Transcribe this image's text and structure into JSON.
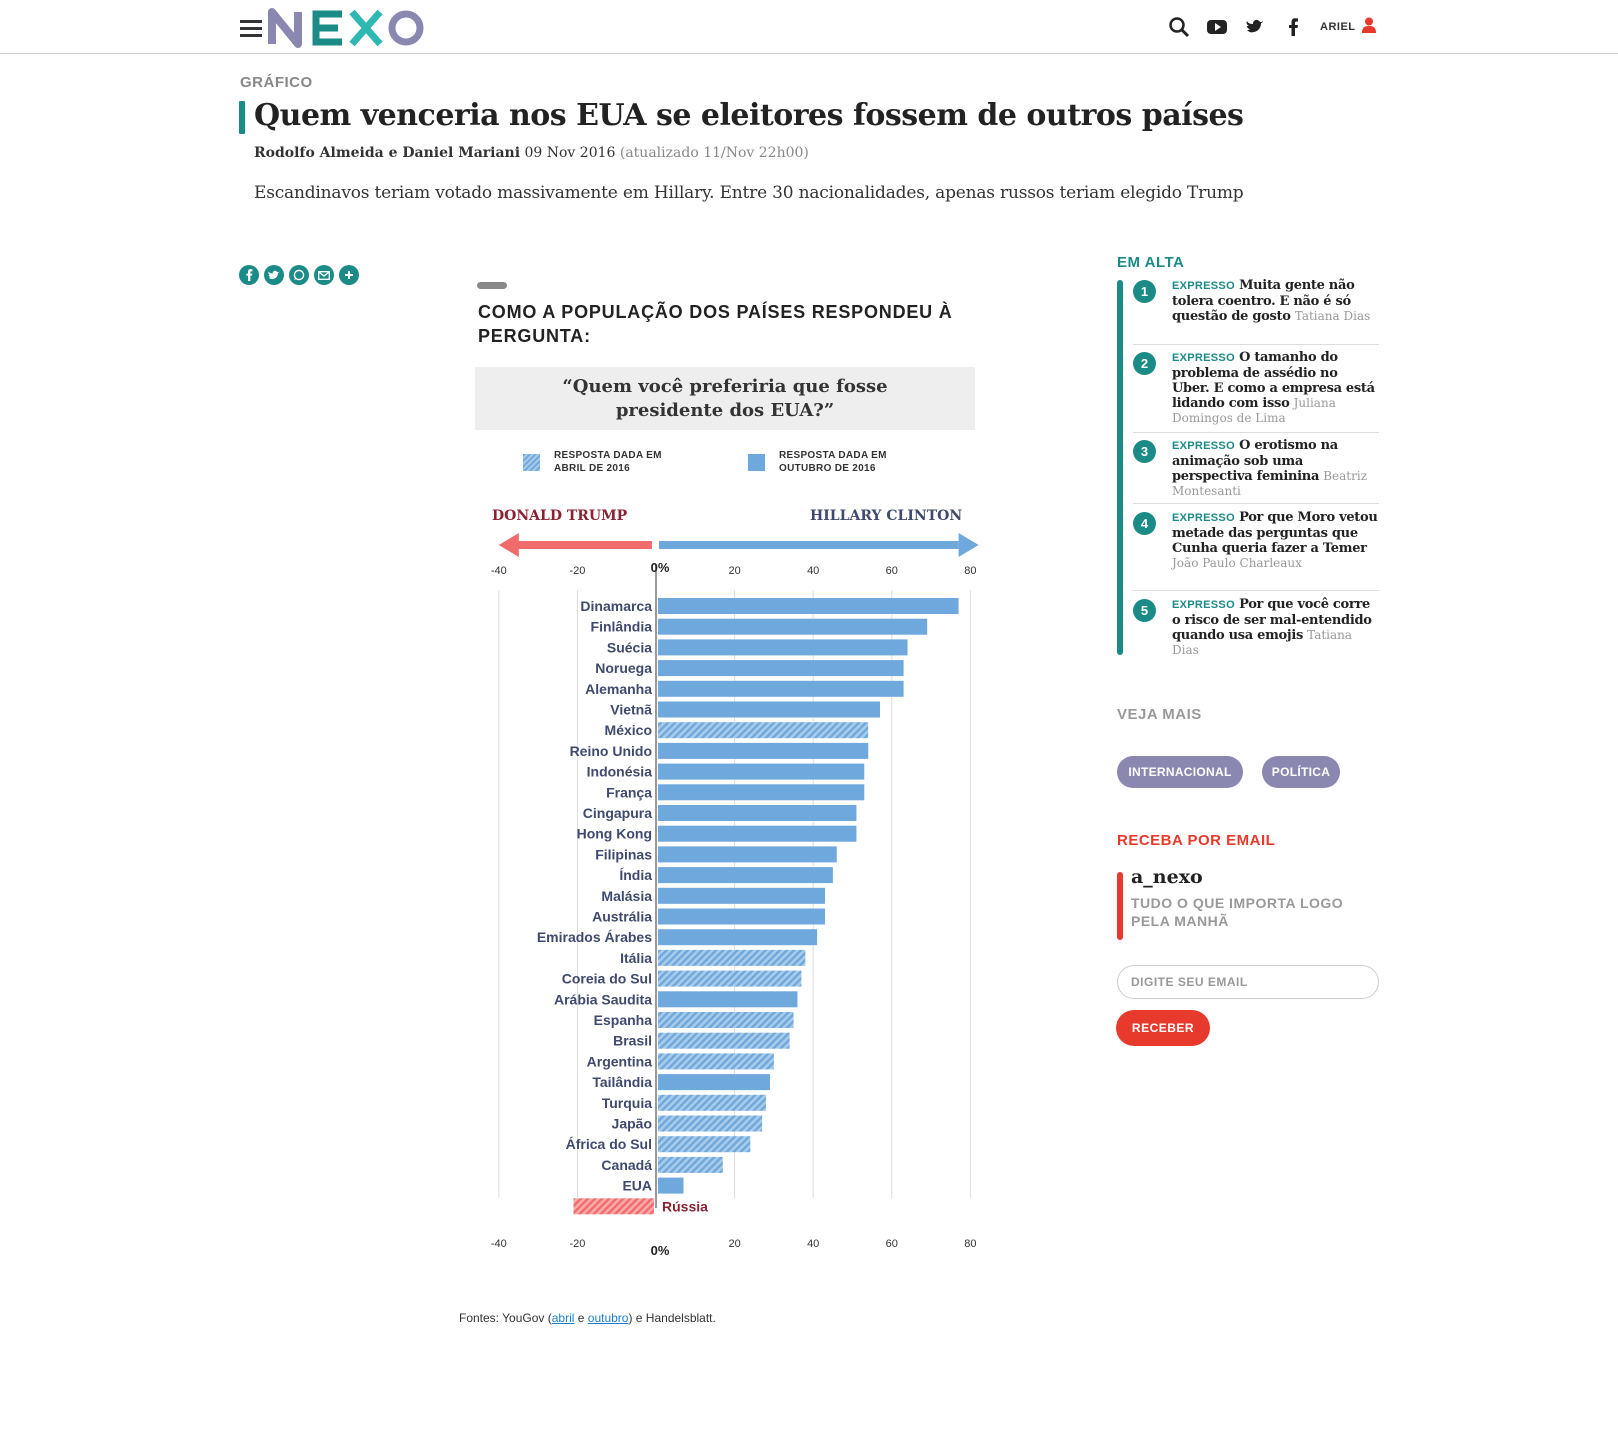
{
  "header": {
    "logo": "NEXO",
    "user": "ARIEL",
    "icons": [
      "menu-icon",
      "search-icon",
      "youtube-icon",
      "twitter-icon",
      "facebook-icon",
      "user-icon"
    ],
    "brand_colors": {
      "teal": "#1b8b88",
      "purple": "#8a88b0",
      "red": "#e83a2c"
    }
  },
  "article": {
    "section": "GRÁFICO",
    "title": "Quem venceria nos EUA se eleitores fossem de outros países",
    "authors": "Rodolfo Almeida e Daniel Mariani",
    "date": "09 Nov 2016",
    "updated": "(atualizado 11/Nov 22h00)",
    "subtitle": "Escandinavos teriam votado massivamente em Hillary. Entre 30 nacionalidades, apenas russos teriam elegido Trump",
    "share_icons": [
      "facebook-icon",
      "twitter-icon",
      "whatsapp-icon",
      "email-icon",
      "plus-icon"
    ]
  },
  "graphic": {
    "heading": "COMO A POPULAÇÃO DOS PAÍSES RESPONDEU À PERGUNTA:",
    "question": "“Quem você preferiria que fosse presidente dos EUA?”",
    "legend_april": "RESPOSTA DADA EM ABRIL DE 2016",
    "legend_october": "RESPOSTA DADA EM OUTUBRO DE 2016",
    "left_candidate": "DONALD TRUMP",
    "right_candidate": "HILLARY CLINTON",
    "sources_prefix": "Fontes: YouGov (",
    "sources_link1": "abril",
    "sources_mid": " e ",
    "sources_link2": "outubro",
    "sources_suffix": ") e Handelsblatt."
  },
  "chart_data": {
    "type": "bar",
    "orientation": "horizontal",
    "zero_label": "0%",
    "xlim": [
      -40,
      80
    ],
    "ticks": [
      "-40",
      "-20",
      "20",
      "40",
      "60",
      "80"
    ],
    "tick_values": [
      -40,
      -20,
      20,
      40,
      60,
      80
    ],
    "colors": {
      "clinton": "#6fa8dc",
      "trump": "#f06b6b",
      "label": "#3f4a6e",
      "russia_label": "#8b2232"
    },
    "categories": [
      "Dinamarca",
      "Finlândia",
      "Suécia",
      "Noruega",
      "Alemanha",
      "Vietnã",
      "México",
      "Reino Unido",
      "Indonésia",
      "França",
      "Cingapura",
      "Hong Kong",
      "Filipinas",
      "Índia",
      "Malásia",
      "Austrália",
      "Emirados Árabes",
      "Itália",
      "Coreia do Sul",
      "Arábia Saudita",
      "Espanha",
      "Brasil",
      "Argentina",
      "Tailândia",
      "Turquia",
      "Japão",
      "África do Sul",
      "Canadá",
      "EUA",
      "Rússia"
    ],
    "values": [
      77,
      69,
      64,
      63,
      63,
      57,
      54,
      54,
      53,
      53,
      51,
      51,
      46,
      45,
      43,
      43,
      41,
      38,
      37,
      36,
      35,
      34,
      30,
      29,
      28,
      27,
      24,
      17,
      7,
      -21
    ],
    "period": [
      "Outubro de 2016",
      "Outubro de 2016",
      "Outubro de 2016",
      "Outubro de 2016",
      "Outubro de 2016",
      "Outubro de 2016",
      "Abril de 2016",
      "Outubro de 2016",
      "Outubro de 2016",
      "Outubro de 2016",
      "Outubro de 2016",
      "Outubro de 2016",
      "Outubro de 2016",
      "Outubro de 2016",
      "Outubro de 2016",
      "Outubro de 2016",
      "Outubro de 2016",
      "Abril de 2016",
      "Abril de 2016",
      "Outubro de 2016",
      "Abril de 2016",
      "Abril de 2016",
      "Abril de 2016",
      "Outubro de 2016",
      "Abril de 2016",
      "Abril de 2016",
      "Abril de 2016",
      "Abril de 2016",
      "Outubro de 2016",
      "Abril de 2016"
    ]
  },
  "sidebar": {
    "trending_title": "EM ALTA",
    "trending": [
      {
        "num": "1",
        "tag": "EXPRESSO",
        "headline": "Muita gente não tolera coentro. E não é só questão de gosto",
        "author": "Tatiana Dias"
      },
      {
        "num": "2",
        "tag": "EXPRESSO",
        "headline": "O tamanho do problema de assédio no Uber. E como a empresa está lidando com isso",
        "author": "Juliana Domingos de Lima"
      },
      {
        "num": "3",
        "tag": "EXPRESSO",
        "headline": "O erotismo na animação sob uma perspectiva feminina",
        "author": "Beatriz Montesanti"
      },
      {
        "num": "4",
        "tag": "EXPRESSO",
        "headline": "Por que Moro vetou metade das perguntas que Cunha queria fazer a Temer",
        "author": "João Paulo Charleaux"
      },
      {
        "num": "5",
        "tag": "EXPRESSO",
        "headline": "Por que você corre o risco de ser mal-entendido quando usa emojis",
        "author": "Tatiana Dias"
      }
    ],
    "see_more_title": "VEJA MAIS",
    "tags": [
      "INTERNACIONAL",
      "POLÍTICA"
    ],
    "newsletter_title": "RECEBA POR EMAIL",
    "newsletter_name": "a_nexo",
    "newsletter_desc": "TUDO O QUE IMPORTA LOGO PELA MANHÃ",
    "email_placeholder": "DIGITE SEU EMAIL",
    "submit_label": "RECEBER"
  }
}
